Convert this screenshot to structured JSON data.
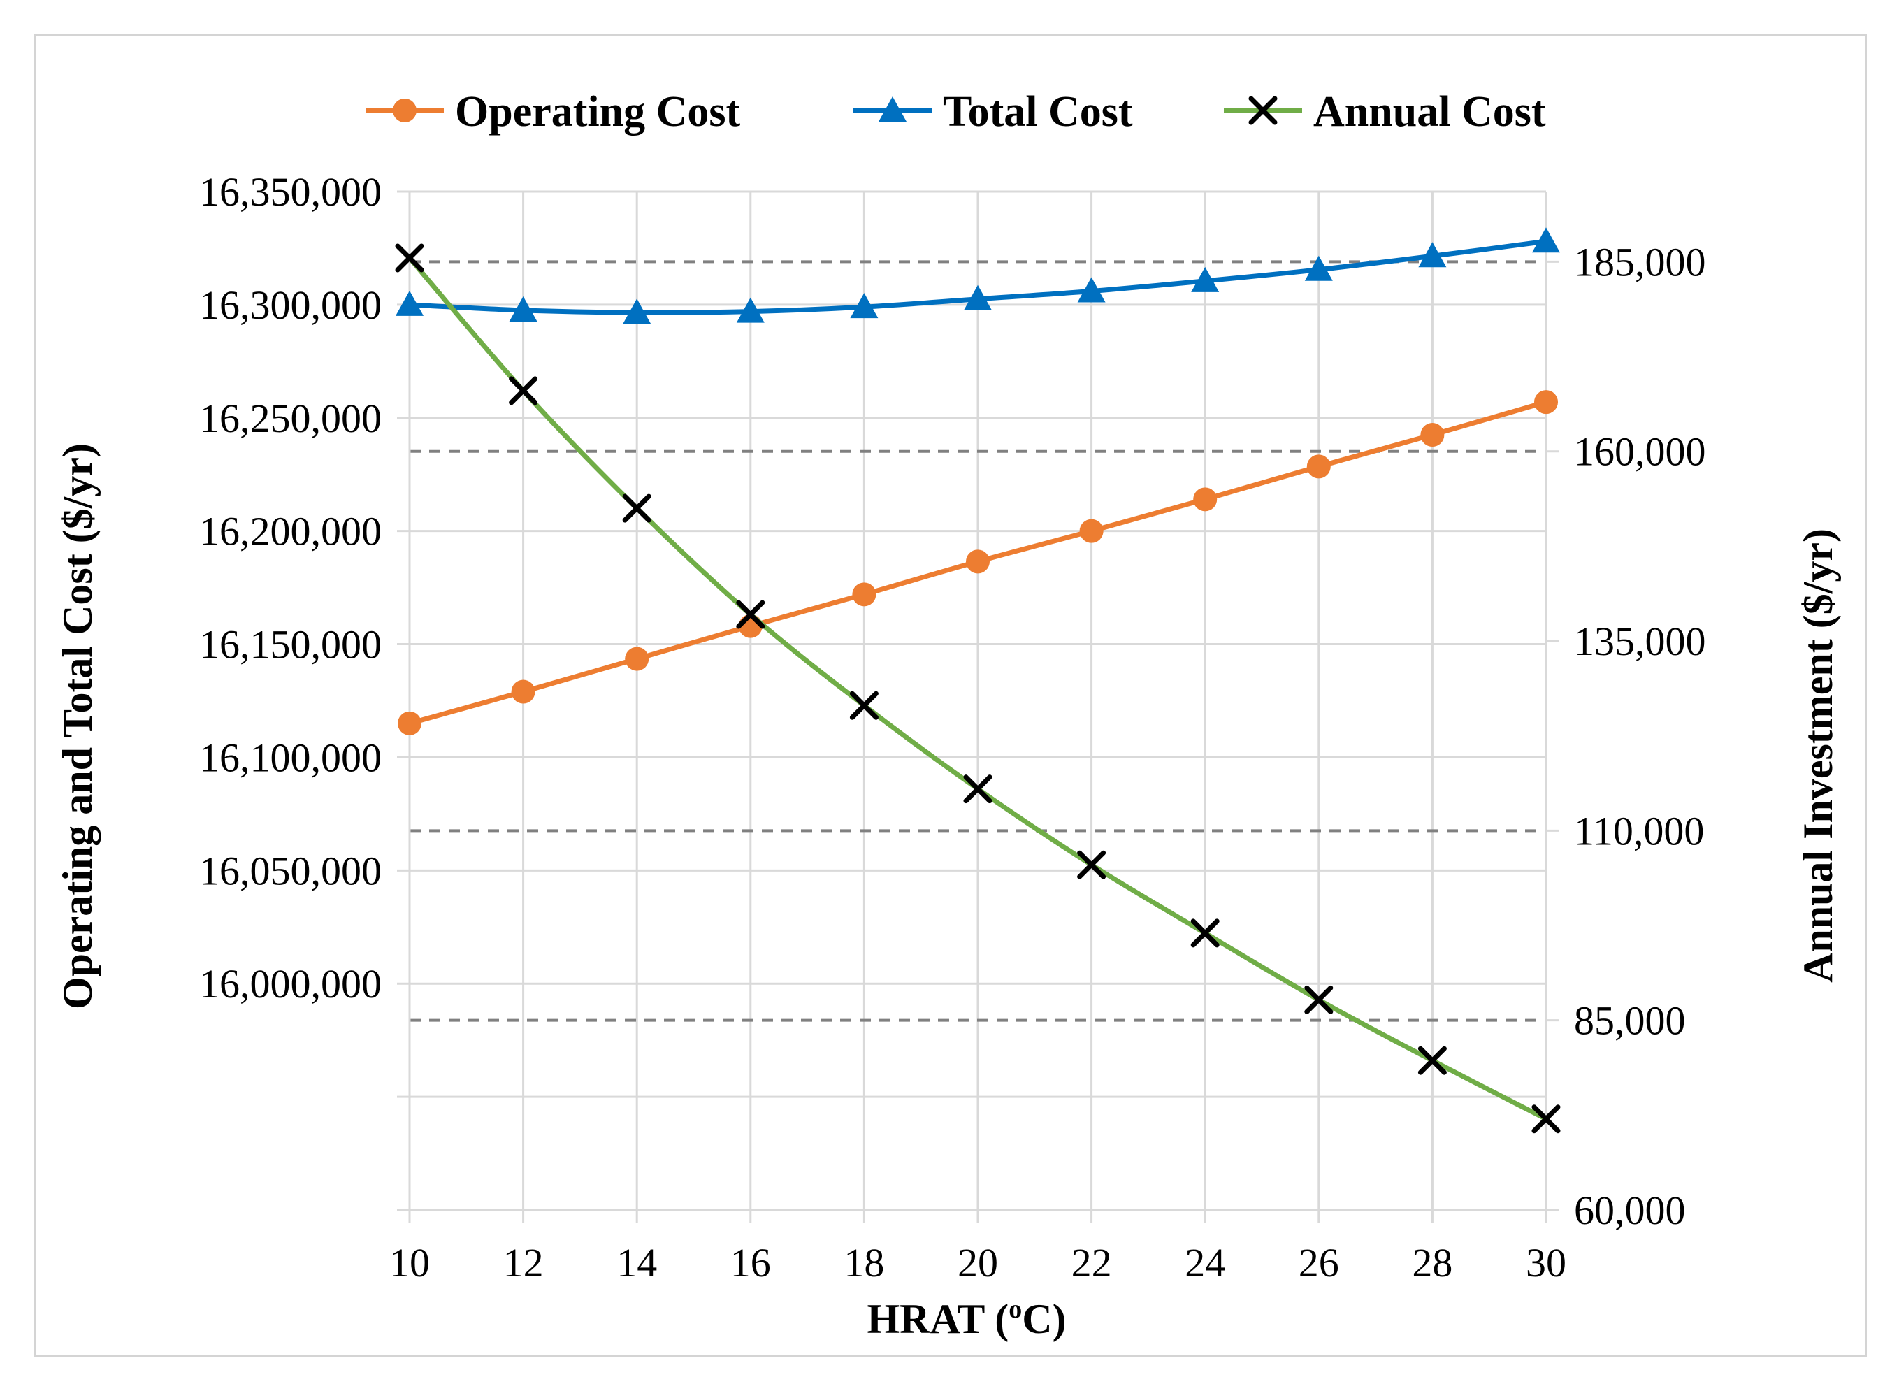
{
  "chart_data": {
    "type": "line",
    "title": "",
    "x": [
      10,
      12,
      14,
      16,
      18,
      20,
      22,
      24,
      26,
      28,
      30
    ],
    "xlabel": "HRAT (°C)",
    "xlabel_main": "HRAT (",
    "xlabel_sup": "o",
    "xlabel_tail": "C)",
    "xlim": [
      10,
      30
    ],
    "xticks": [
      "10",
      "12",
      "14",
      "16",
      "18",
      "20",
      "22",
      "24",
      "26",
      "28",
      "30"
    ],
    "ylabel_left": "Operating and Total Cost ($/yr)",
    "ylabel_right": "Annual Investment ($/yr)",
    "ylim_left": [
      15900000,
      16350000
    ],
    "ylim_right": [
      60000,
      194250
    ],
    "yticks_left": [
      {
        "value": 16000000,
        "label": "16,000,000"
      },
      {
        "value": 16050000,
        "label": "16,050,000"
      },
      {
        "value": 16100000,
        "label": "16,100,000"
      },
      {
        "value": 16150000,
        "label": "16,150,000"
      },
      {
        "value": 16200000,
        "label": "16,200,000"
      },
      {
        "value": 16250000,
        "label": "16,250,000"
      },
      {
        "value": 16300000,
        "label": "16,300,000"
      },
      {
        "value": 16350000,
        "label": "16,350,000"
      }
    ],
    "gridlines_left": [
      15900000,
      15950000,
      16000000,
      16050000,
      16100000,
      16150000,
      16200000,
      16250000,
      16300000,
      16350000
    ],
    "yticks_right": [
      {
        "value": 60000,
        "label": "60,000"
      },
      {
        "value": 85000,
        "label": "85,000"
      },
      {
        "value": 110000,
        "label": "110,000"
      },
      {
        "value": 135000,
        "label": "135,000"
      },
      {
        "value": 160000,
        "label": "160,000"
      },
      {
        "value": 185000,
        "label": "185,000"
      }
    ],
    "gridlines_right_dashed": [
      85000,
      110000,
      160000,
      185000
    ],
    "legend_position": "top",
    "series": [
      {
        "name": "Operating Cost",
        "axis": "left",
        "color": "#ed7d31",
        "marker": "circle",
        "values": [
          16115000,
          16129000,
          16143500,
          16158000,
          16172000,
          16186500,
          16200000,
          16214000,
          16228500,
          16242500,
          16257000
        ]
      },
      {
        "name": "Total Cost",
        "axis": "left",
        "color": "#0070c0",
        "marker": "triangle",
        "values": [
          16300000,
          16297500,
          16296500,
          16297000,
          16299000,
          16302500,
          16306000,
          16310500,
          16315500,
          16321500,
          16328000
        ]
      },
      {
        "name": "Annual Cost",
        "axis": "right",
        "color": "#70ad47",
        "marker": "x",
        "marker_color": "#000000",
        "values": [
          185500,
          168000,
          152500,
          138500,
          126500,
          115500,
          105500,
          96500,
          87700,
          79700,
          72000
        ]
      }
    ]
  }
}
